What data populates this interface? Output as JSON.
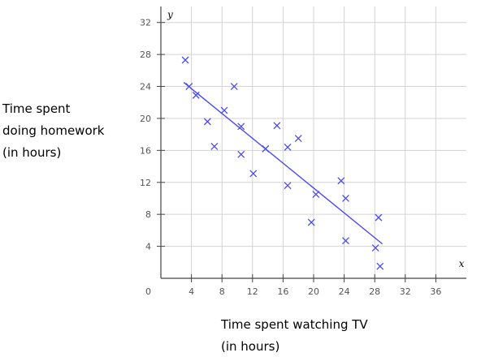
{
  "chart_data": {
    "type": "scatter",
    "x_axis_var": "x",
    "y_axis_var": "y",
    "xlabel": [
      "Time spent watching TV",
      "(in hours)"
    ],
    "ylabel": [
      "Time spent",
      "doing homework",
      "(in hours)"
    ],
    "xlim": [
      0,
      40
    ],
    "ylim": [
      0,
      34
    ],
    "x_ticks": [
      4,
      8,
      12,
      16,
      20,
      24,
      28,
      32,
      36
    ],
    "y_ticks": [
      4,
      8,
      12,
      16,
      20,
      24,
      28,
      32
    ],
    "origin_label": "0",
    "grid": true,
    "points": [
      {
        "x": 3.2,
        "y": 27.3
      },
      {
        "x": 3.7,
        "y": 24.0
      },
      {
        "x": 4.6,
        "y": 22.9
      },
      {
        "x": 6.1,
        "y": 19.6
      },
      {
        "x": 7.0,
        "y": 16.5
      },
      {
        "x": 8.3,
        "y": 21.0
      },
      {
        "x": 9.6,
        "y": 24.0
      },
      {
        "x": 10.5,
        "y": 19.0
      },
      {
        "x": 10.5,
        "y": 15.5
      },
      {
        "x": 12.1,
        "y": 13.1
      },
      {
        "x": 13.7,
        "y": 16.2
      },
      {
        "x": 15.2,
        "y": 19.1
      },
      {
        "x": 16.6,
        "y": 16.4
      },
      {
        "x": 16.6,
        "y": 11.6
      },
      {
        "x": 18.0,
        "y": 17.5
      },
      {
        "x": 19.7,
        "y": 7.0
      },
      {
        "x": 20.3,
        "y": 10.5
      },
      {
        "x": 23.6,
        "y": 12.2
      },
      {
        "x": 24.2,
        "y": 10.0
      },
      {
        "x": 24.2,
        "y": 4.7
      },
      {
        "x": 28.1,
        "y": 3.8
      },
      {
        "x": 28.5,
        "y": 7.6
      },
      {
        "x": 28.7,
        "y": 1.5
      }
    ],
    "trend_line": {
      "x1": 3.0,
      "y1": 24.5,
      "x2": 29.0,
      "y2": 4.3
    },
    "colors": {
      "points": "#4a4aee",
      "trend_line": "#4a4aee",
      "grid": "#d3d3d3",
      "axis": "#444444"
    }
  }
}
